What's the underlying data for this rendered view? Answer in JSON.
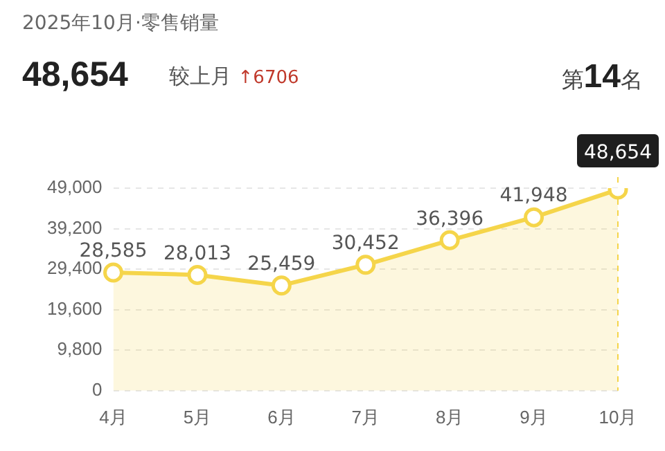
{
  "chart_data": {
    "type": "area",
    "title": "2025年10月·零售销量",
    "annotations": [
      "48,654",
      "较上月 ↑6706",
      "第14名"
    ],
    "categories": [
      "4月",
      "5月",
      "6月",
      "7月",
      "8月",
      "9月",
      "10月"
    ],
    "values": [
      28585,
      28013,
      25459,
      30452,
      36396,
      41948,
      48654
    ],
    "color": "#f5d54a",
    "value_labels": [
      "28,585",
      "28,013",
      "25,459",
      "30,452",
      "36,396",
      "41,948",
      "48,654"
    ],
    "ylim": [
      0,
      49000
    ],
    "yticks": [
      0,
      {
        "value": 9800,
        "label": "9,800"
      },
      {
        "value": 19600,
        "label": "19,600"
      },
      {
        "value": 29400,
        "label": "29,400"
      },
      {
        "value": 39200,
        "label": "39,200"
      },
      {
        "value": 49000,
        "label": "49,000"
      }
    ],
    "grid": "y",
    "marker": "circle",
    "ref_lines": [
      {
        "axis": "x",
        "value": "10月",
        "color": "#f5d54a",
        "line_style": "dashed"
      }
    ]
  }
}
